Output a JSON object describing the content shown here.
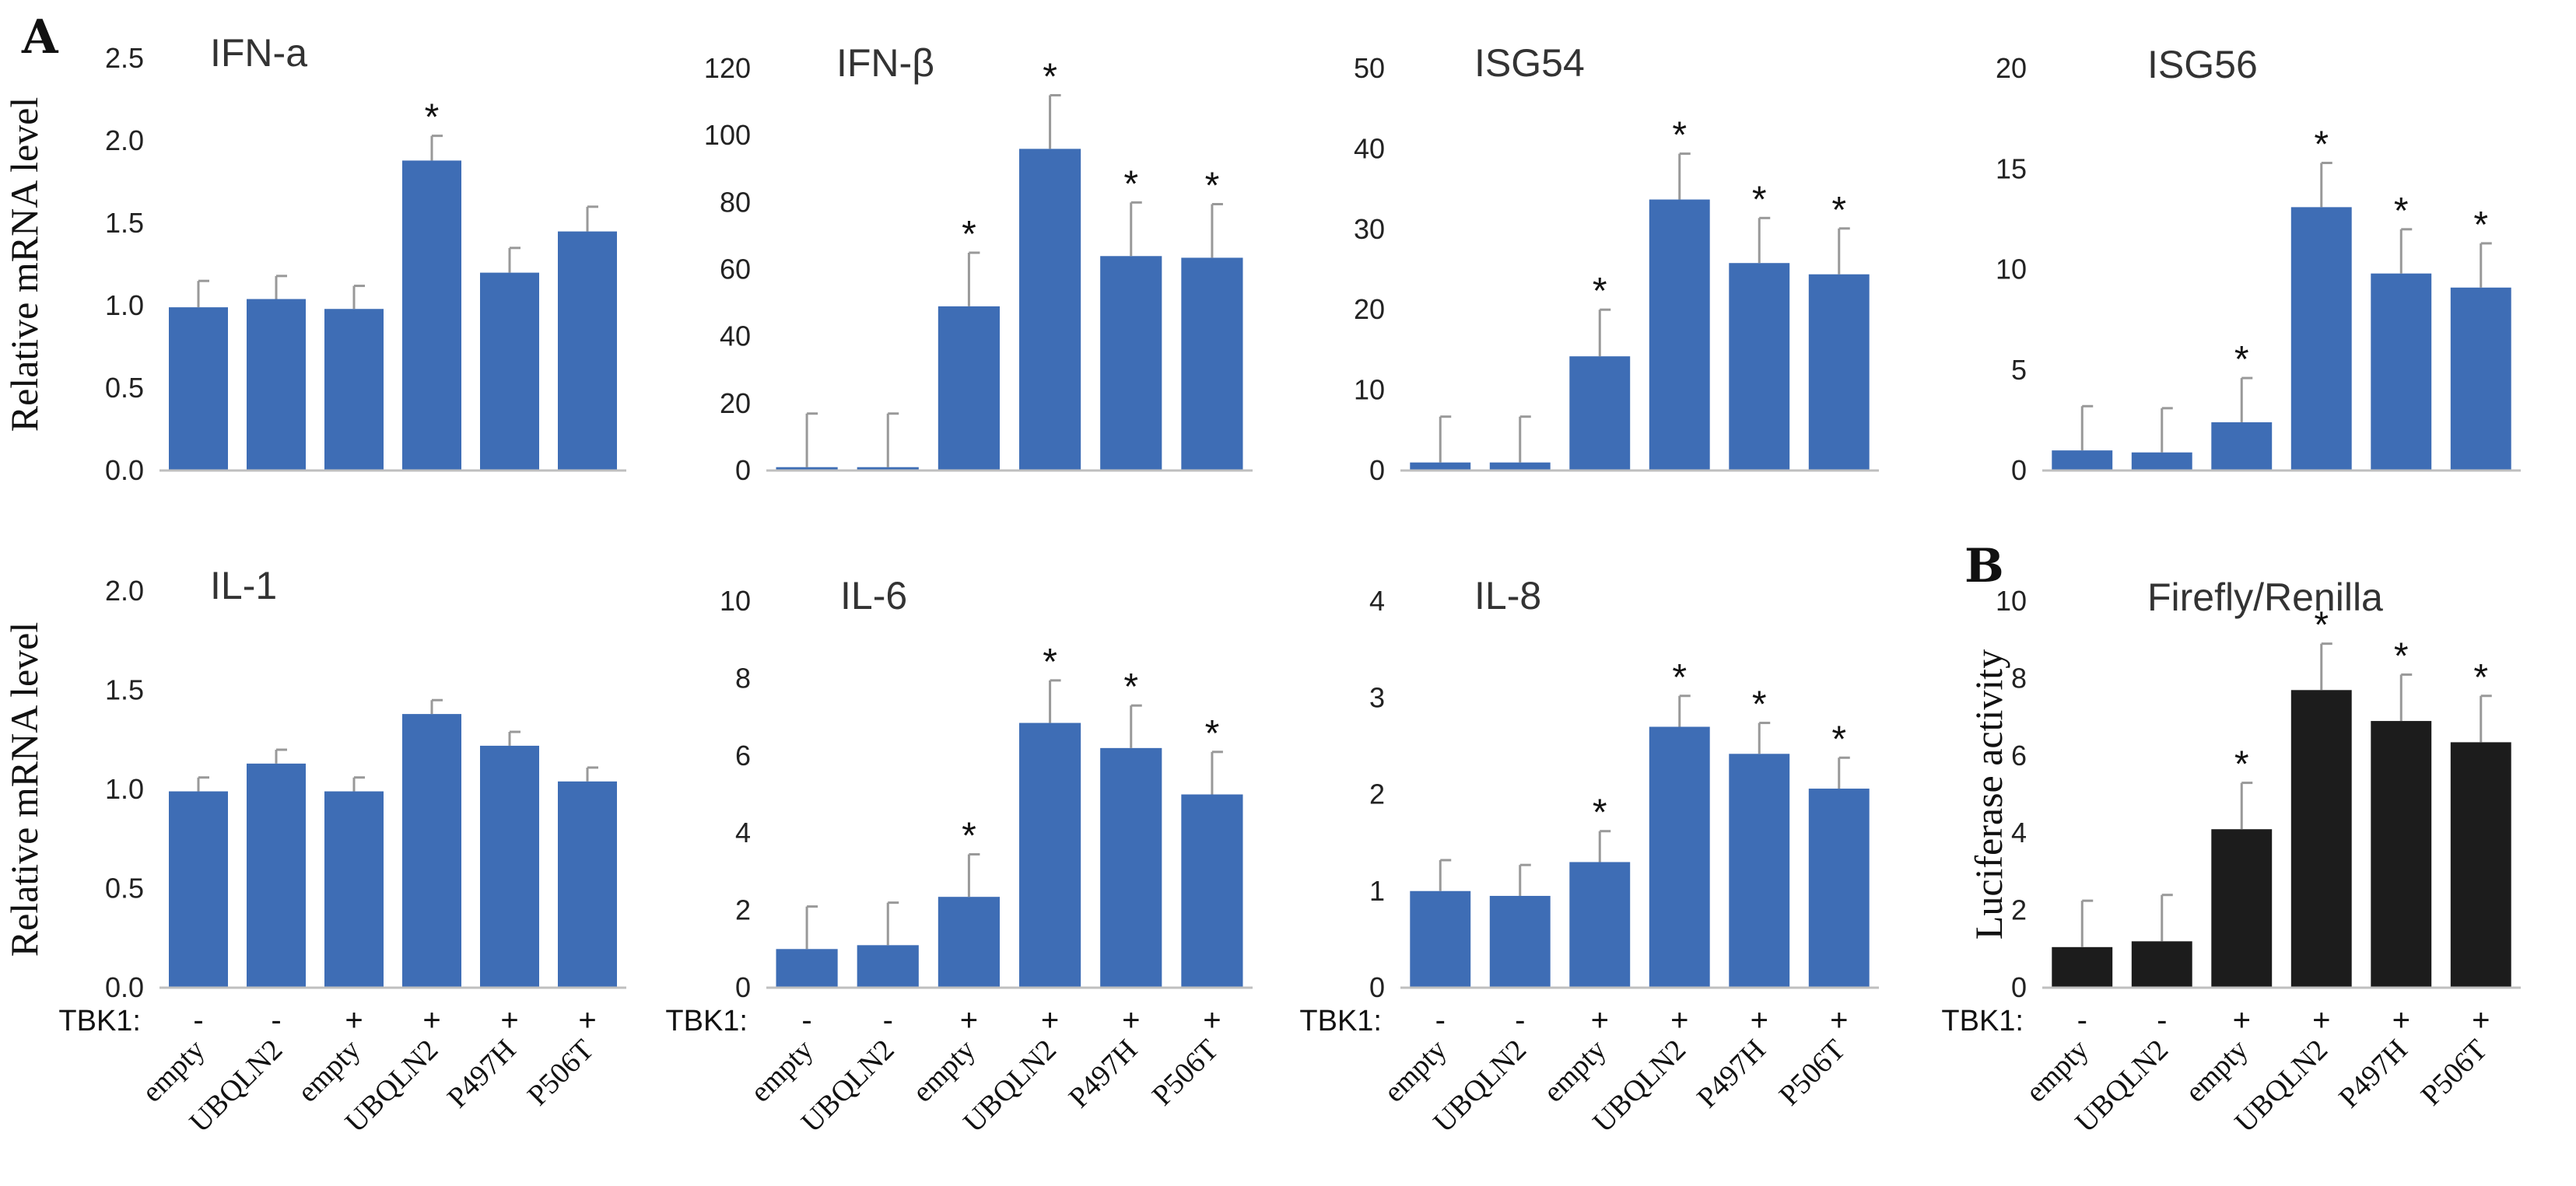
{
  "panel_labels": [
    "A",
    "B"
  ],
  "tbk1_label": "TBK1:",
  "significance_marker": "*",
  "colors": {
    "blue": "#3e6db5",
    "black": "#1c1c1c",
    "error": "#999999",
    "axis": "#bfbfbf"
  },
  "chart_data": [
    {
      "type": "bar",
      "title": "IFN-a",
      "ylabel": "Relative mRNA level",
      "ylim": [
        0,
        2.5
      ],
      "yticks": [
        "0.0",
        "0.5",
        "1.0",
        "1.5",
        "2.0",
        "2.5"
      ],
      "categories": [
        "empty",
        "UBQLN2",
        "empty",
        "UBQLN2",
        "P497H",
        "P506T"
      ],
      "tbk1": [
        "-",
        "-",
        "+",
        "+",
        "+",
        "+"
      ],
      "values": [
        0.99,
        1.04,
        0.98,
        1.88,
        1.2,
        1.45
      ],
      "errors": [
        0.16,
        0.14,
        0.14,
        0.15,
        0.15,
        0.15
      ],
      "significant": [
        false,
        false,
        false,
        true,
        false,
        false
      ],
      "color": "blue",
      "show_ylabel": true,
      "show_xaxis": false,
      "panel_label": "A"
    },
    {
      "type": "bar",
      "title": "IFN-β",
      "ylabel": "",
      "ylim": [
        0,
        120
      ],
      "yticks": [
        "0",
        "20",
        "40",
        "60",
        "80",
        "100",
        "120"
      ],
      "categories": [
        "empty",
        "UBQLN2",
        "empty",
        "UBQLN2",
        "P497H",
        "P506T"
      ],
      "tbk1": [
        "-",
        "-",
        "+",
        "+",
        "+",
        "+"
      ],
      "values": [
        1,
        1,
        49,
        96,
        64,
        63.5
      ],
      "errors": [
        16,
        16,
        16,
        16,
        16,
        16
      ],
      "significant": [
        false,
        false,
        true,
        true,
        true,
        true
      ],
      "color": "blue",
      "show_ylabel": false,
      "show_xaxis": false
    },
    {
      "type": "bar",
      "title": "ISG54",
      "ylabel": "",
      "ylim": [
        0,
        50
      ],
      "yticks": [
        "0",
        "10",
        "20",
        "30",
        "40",
        "50"
      ],
      "categories": [
        "empty",
        "UBQLN2",
        "empty",
        "UBQLN2",
        "P497H",
        "P506T"
      ],
      "tbk1": [
        "-",
        "-",
        "+",
        "+",
        "+",
        "+"
      ],
      "values": [
        1,
        1,
        14.2,
        33.7,
        25.8,
        24.4
      ],
      "errors": [
        5.7,
        5.7,
        5.8,
        5.7,
        5.6,
        5.7
      ],
      "significant": [
        false,
        false,
        true,
        true,
        true,
        true
      ],
      "color": "blue",
      "show_ylabel": false,
      "show_xaxis": false
    },
    {
      "type": "bar",
      "title": "ISG56",
      "ylabel": "",
      "ylim": [
        0,
        20
      ],
      "yticks": [
        "0",
        "5",
        "10",
        "15",
        "20"
      ],
      "categories": [
        "empty",
        "UBQLN2",
        "empty",
        "UBQLN2",
        "P497H",
        "P506T"
      ],
      "tbk1": [
        "-",
        "-",
        "+",
        "+",
        "+",
        "+"
      ],
      "values": [
        1,
        0.9,
        2.4,
        13.1,
        9.8,
        9.1
      ],
      "errors": [
        2.2,
        2.2,
        2.2,
        2.2,
        2.2,
        2.2
      ],
      "significant": [
        false,
        false,
        true,
        true,
        true,
        true
      ],
      "color": "blue",
      "show_ylabel": false,
      "show_xaxis": false
    },
    {
      "type": "bar",
      "title": "IL-1",
      "ylabel": "Relative mRNA level",
      "ylim": [
        0,
        2.0
      ],
      "yticks": [
        "0.0",
        "0.5",
        "1.0",
        "1.5",
        "2.0"
      ],
      "categories": [
        "empty",
        "UBQLN2",
        "empty",
        "UBQLN2",
        "P497H",
        "P506T"
      ],
      "tbk1": [
        "-",
        "-",
        "+",
        "+",
        "+",
        "+"
      ],
      "values": [
        0.99,
        1.13,
        0.99,
        1.38,
        1.22,
        1.04
      ],
      "errors": [
        0.07,
        0.07,
        0.07,
        0.07,
        0.07,
        0.07
      ],
      "significant": [
        false,
        false,
        false,
        false,
        false,
        false
      ],
      "color": "blue",
      "show_ylabel": true,
      "show_xaxis": true
    },
    {
      "type": "bar",
      "title": "IL-6",
      "ylabel": "",
      "ylim": [
        0,
        10
      ],
      "yticks": [
        "0",
        "2",
        "4",
        "6",
        "8",
        "10"
      ],
      "categories": [
        "empty",
        "UBQLN2",
        "empty",
        "UBQLN2",
        "P497H",
        "P506T"
      ],
      "tbk1": [
        "-",
        "-",
        "+",
        "+",
        "+",
        "+"
      ],
      "values": [
        1.0,
        1.1,
        2.35,
        6.85,
        6.2,
        5.0
      ],
      "errors": [
        1.1,
        1.1,
        1.1,
        1.1,
        1.1,
        1.1
      ],
      "significant": [
        false,
        false,
        true,
        true,
        true,
        true
      ],
      "color": "blue",
      "show_ylabel": false,
      "show_xaxis": true
    },
    {
      "type": "bar",
      "title": "IL-8",
      "ylabel": "",
      "ylim": [
        0,
        4
      ],
      "yticks": [
        "0",
        "1",
        "2",
        "3",
        "4"
      ],
      "categories": [
        "empty",
        "UBQLN2",
        "empty",
        "UBQLN2",
        "P497H",
        "P506T"
      ],
      "tbk1": [
        "-",
        "-",
        "+",
        "+",
        "+",
        "+"
      ],
      "values": [
        1.0,
        0.95,
        1.3,
        2.7,
        2.42,
        2.06
      ],
      "errors": [
        0.32,
        0.32,
        0.32,
        0.32,
        0.32,
        0.32
      ],
      "significant": [
        false,
        false,
        true,
        true,
        true,
        true
      ],
      "color": "blue",
      "show_ylabel": false,
      "show_xaxis": true
    },
    {
      "type": "bar",
      "title": "Firefly/Renilla",
      "ylabel": "Luciferase activity",
      "ylim": [
        0,
        10
      ],
      "yticks": [
        "0",
        "2",
        "4",
        "6",
        "8",
        "10"
      ],
      "categories": [
        "empty",
        "UBQLN2",
        "empty",
        "UBQLN2",
        "P497H",
        "P506T"
      ],
      "tbk1": [
        "-",
        "-",
        "+",
        "+",
        "+",
        "+"
      ],
      "values": [
        1.05,
        1.2,
        4.1,
        7.7,
        6.9,
        6.35
      ],
      "errors": [
        1.2,
        1.2,
        1.2,
        1.2,
        1.2,
        1.2
      ],
      "significant": [
        false,
        false,
        true,
        true,
        true,
        true
      ],
      "color": "black",
      "show_ylabel": true,
      "show_xaxis": true,
      "panel_label": "B"
    }
  ]
}
